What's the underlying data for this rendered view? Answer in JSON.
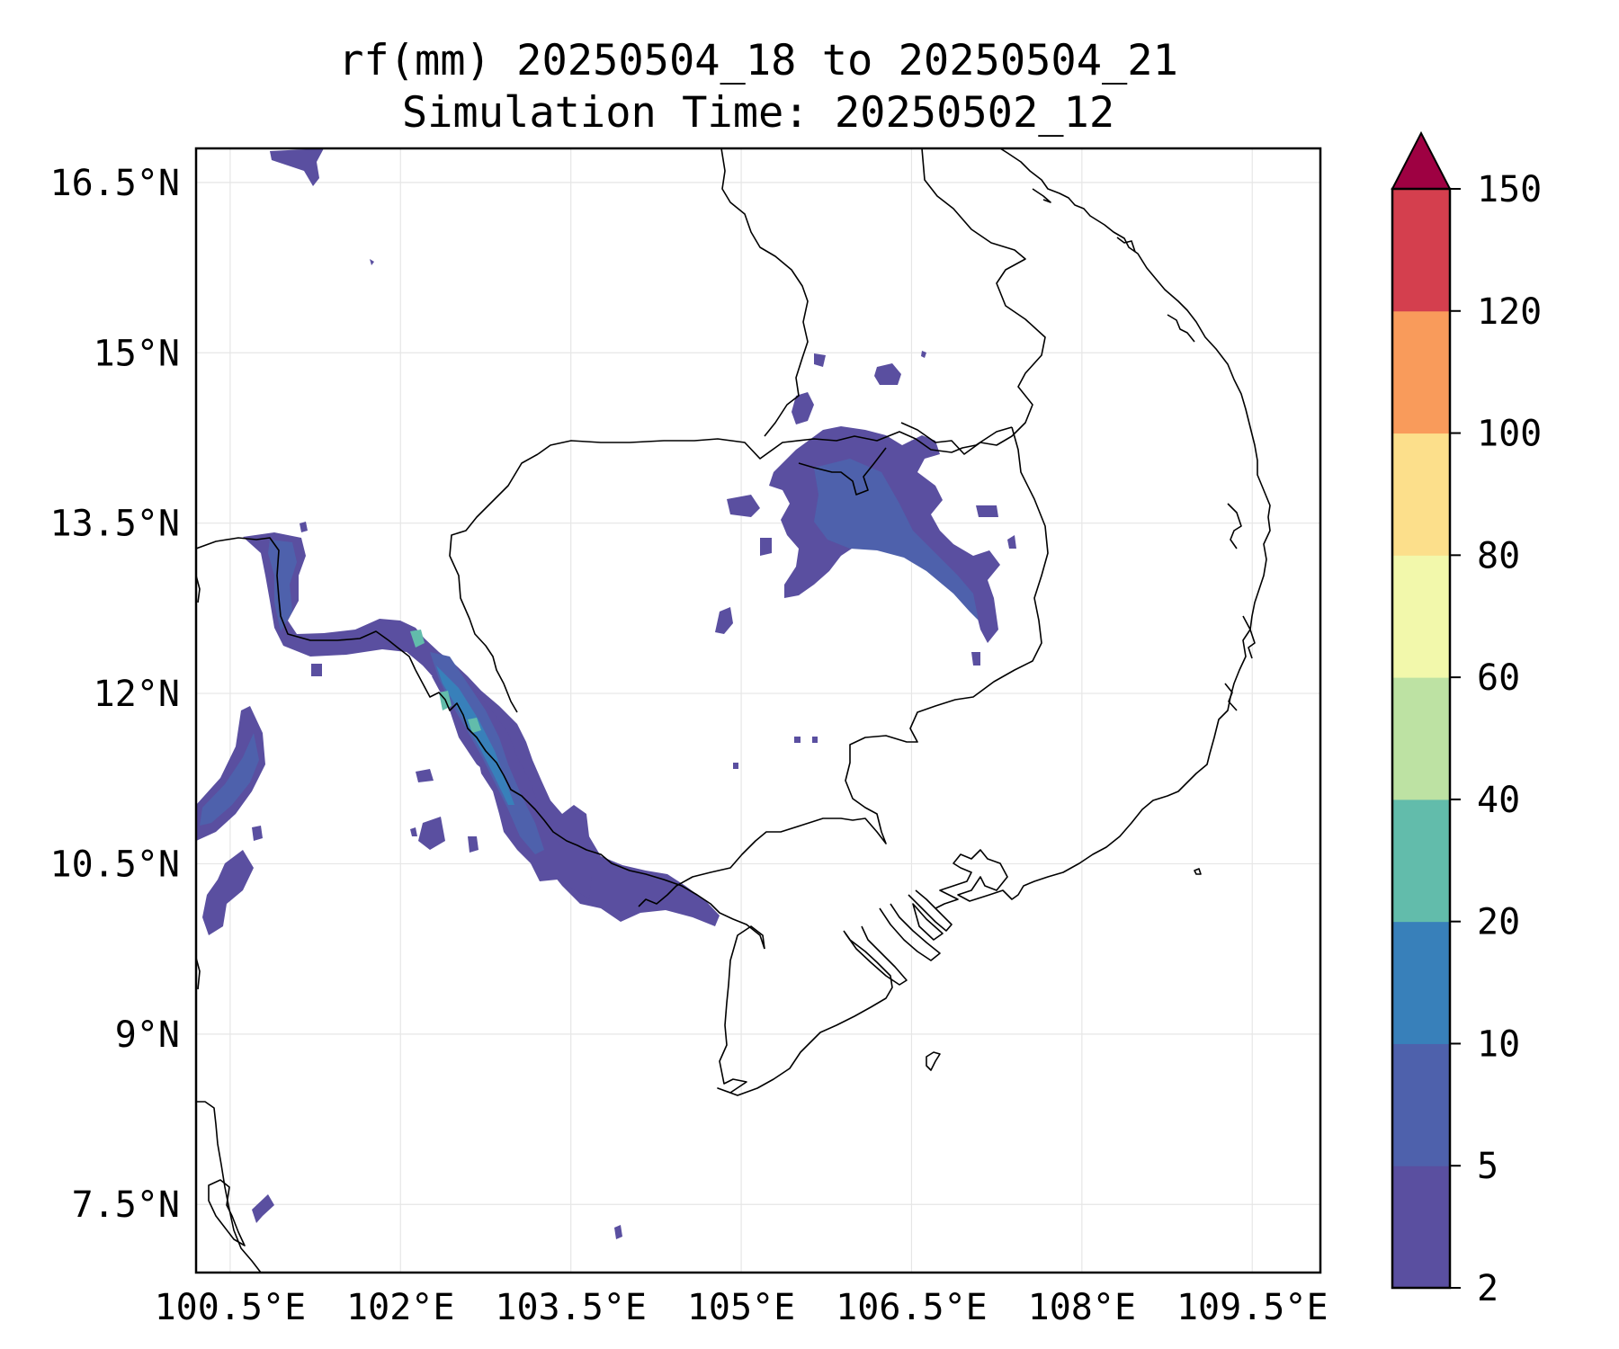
{
  "title": {
    "line1": "rf(mm) 20250504_18 to 20250504_21",
    "line2": "Simulation Time: 20250502_12"
  },
  "map": {
    "lon_range": [
      100.2,
      110.1
    ],
    "lat_range": [
      6.9,
      16.8
    ],
    "lon_ticks": [
      {
        "value": 100.5,
        "label": "100.5°E"
      },
      {
        "value": 102,
        "label": "102°E"
      },
      {
        "value": 103.5,
        "label": "103.5°E"
      },
      {
        "value": 105,
        "label": "105°E"
      },
      {
        "value": 106.5,
        "label": "106.5°E"
      },
      {
        "value": 108,
        "label": "108°E"
      },
      {
        "value": 109.5,
        "label": "109.5°E"
      }
    ],
    "lat_ticks": [
      {
        "value": 16.5,
        "label": "16.5°N"
      },
      {
        "value": 15,
        "label": "15°N"
      },
      {
        "value": 13.5,
        "label": "13.5°N"
      },
      {
        "value": 12,
        "label": "12°N"
      },
      {
        "value": 10.5,
        "label": "10.5°N"
      },
      {
        "value": 9,
        "label": "9°N"
      },
      {
        "value": 7.5,
        "label": "7.5°N"
      }
    ],
    "gridlines": true,
    "coastlines": true,
    "borders": true
  },
  "colorbar": {
    "levels": [
      "2",
      "5",
      "10",
      "20",
      "40",
      "60",
      "80",
      "100",
      "120",
      "150"
    ],
    "colors": [
      "#5a4fa0",
      "#4e61ac",
      "#3880ba",
      "#62bcab",
      "#bde2a3",
      "#f2f8ab",
      "#fcdf8b",
      "#f99b5b",
      "#d43f4e"
    ],
    "extend_color": "#9e0142",
    "extend": "max"
  },
  "precip_colors": {
    "light": "#5a4fa0",
    "moderate": "#4e61ac",
    "heavy": "#3880ba",
    "heavier": "#62bcab"
  }
}
